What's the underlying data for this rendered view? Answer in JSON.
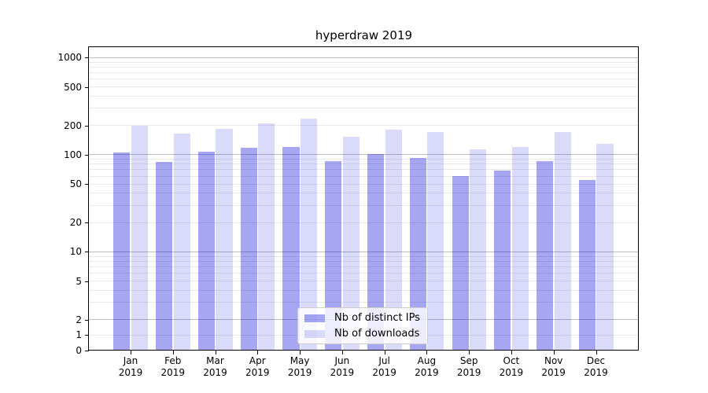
{
  "title": "hyperdraw 2019",
  "chart_data": {
    "type": "bar",
    "title": "hyperdraw 2019",
    "categories": [
      "Jan",
      "Feb",
      "Mar",
      "Apr",
      "May",
      "Jun",
      "Jul",
      "Aug",
      "Sep",
      "Oct",
      "Nov",
      "Dec"
    ],
    "x_year_label": "2019",
    "series": [
      {
        "name": "Nb of distinct IPs",
        "color_hex": "#a6a6f3",
        "color_rgba": "rgba(0,0,220,0.35)",
        "values": [
          104,
          84,
          107,
          117,
          120,
          85,
          101,
          91,
          60,
          68,
          85,
          54
        ]
      },
      {
        "name": "Nb of downloads",
        "color_hex": "#dbdbfa",
        "color_rgba": "rgba(0,0,220,0.145)",
        "values": [
          197,
          163,
          184,
          207,
          235,
          152,
          181,
          169,
          113,
          120,
          170,
          128
        ]
      }
    ],
    "yscale": "symlog (logarithmic above 2, linear from 0 to 2)",
    "ylim": [
      0,
      1300
    ],
    "ytick_labels": [
      "1000",
      "500",
      "200",
      "100",
      "50",
      "20",
      "10",
      "5",
      "2",
      "1",
      "0"
    ],
    "ytick_values": [
      1000,
      500,
      200,
      100,
      50,
      20,
      10,
      5,
      2,
      1,
      0
    ],
    "grid_major_values": [
      1000,
      100,
      10,
      2
    ],
    "grid_minor_values": [
      1,
      3,
      4,
      5,
      6,
      7,
      8,
      9,
      20,
      30,
      40,
      50,
      60,
      70,
      80,
      90,
      200,
      300,
      400,
      500,
      600,
      700,
      800,
      900
    ],
    "grid": true,
    "legend_position": "lower center",
    "colors": {
      "grid_major": "#bdbdbd",
      "grid_minor": "#e9e9e9",
      "axis": "#000000",
      "legend_border": "#cccccc"
    }
  }
}
